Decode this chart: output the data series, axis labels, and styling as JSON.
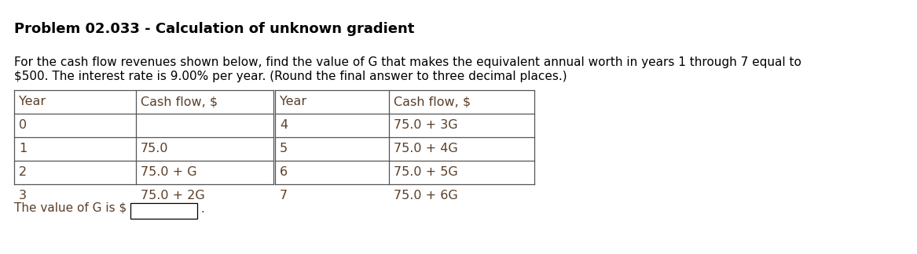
{
  "title": "Problem 02.033 - Calculation of unknown gradient",
  "description_line1": "For the cash flow revenues shown below, find the value of G that makes the equivalent annual worth in years 1 through 7 equal to",
  "description_line2": "$500. The interest rate is 9.00% per year. (Round the final answer to three decimal places.)",
  "table_left_headers": [
    "Year",
    "Cash flow, $"
  ],
  "table_right_headers": [
    "Year",
    "Cash flow, $"
  ],
  "table_left_data": [
    [
      "0",
      ""
    ],
    [
      "1",
      "75.0"
    ],
    [
      "2",
      "75.0 + G"
    ],
    [
      "3",
      "75.0 + 2G"
    ]
  ],
  "table_right_data": [
    [
      "4",
      "75.0 + 3G"
    ],
    [
      "5",
      "75.0 + 4G"
    ],
    [
      "6",
      "75.0 + 5G"
    ],
    [
      "7",
      "75.0 + 6G"
    ]
  ],
  "answer_label": "The value of G is $",
  "title_color": "#000000",
  "body_text_color": "#000000",
  "table_text_color": "#5a3e28",
  "answer_text_color": "#5a3e28",
  "bg_color": "#ffffff",
  "title_fontsize": 13,
  "body_fontsize": 11,
  "table_fontsize": 11.5
}
